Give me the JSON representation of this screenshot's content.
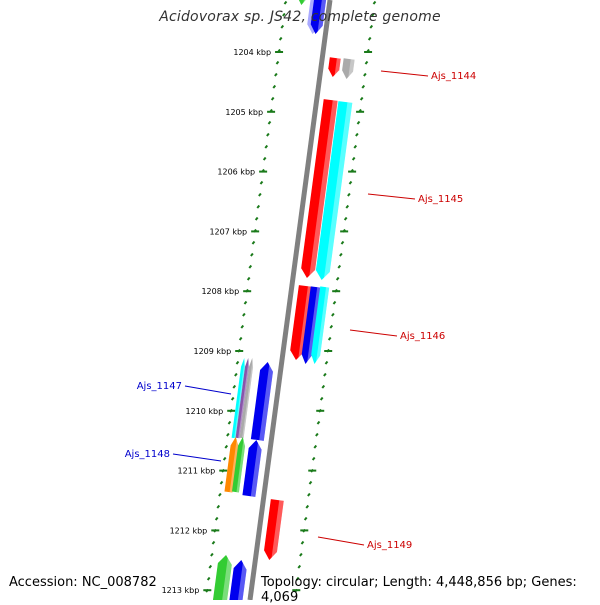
{
  "title": "Acidovorax sp. JS42, complete genome",
  "footer": {
    "accession": "Accession: NC_008782",
    "summary": "Topology: circular; Length: 4,448,856 bp; Genes: 4,069"
  },
  "colors": {
    "backbone": "#808080",
    "tick": "#1a7a1a",
    "plus_label": "#cc0000",
    "minus_label": "#0000cc",
    "red": "#ff0000",
    "blue": "#0000ee",
    "cyan": "#00ffff",
    "green": "#33cc33",
    "orange": "#ff8800",
    "gray": "#aaaaaa",
    "purple": "#8855aa",
    "lavender": "#aaaaff"
  },
  "axis": {
    "unit": "kbp",
    "ticks": [
      {
        "label": "1204 kbp"
      },
      {
        "label": "1205 kbp"
      },
      {
        "label": "1206 kbp"
      },
      {
        "label": "1207 kbp"
      },
      {
        "label": "1208 kbp"
      },
      {
        "label": "1209 kbp"
      },
      {
        "label": "1210 kbp"
      },
      {
        "label": "1211 kbp"
      },
      {
        "label": "1212 kbp"
      },
      {
        "label": "1213 kbp"
      }
    ]
  },
  "gene_labels": [
    {
      "name": "Ajs_1144",
      "strand": "plus"
    },
    {
      "name": "Ajs_1145",
      "strand": "plus"
    },
    {
      "name": "Ajs_1146",
      "strand": "plus"
    },
    {
      "name": "Ajs_1147",
      "strand": "minus"
    },
    {
      "name": "Ajs_1148",
      "strand": "minus"
    },
    {
      "name": "Ajs_1149",
      "strand": "plus"
    }
  ]
}
